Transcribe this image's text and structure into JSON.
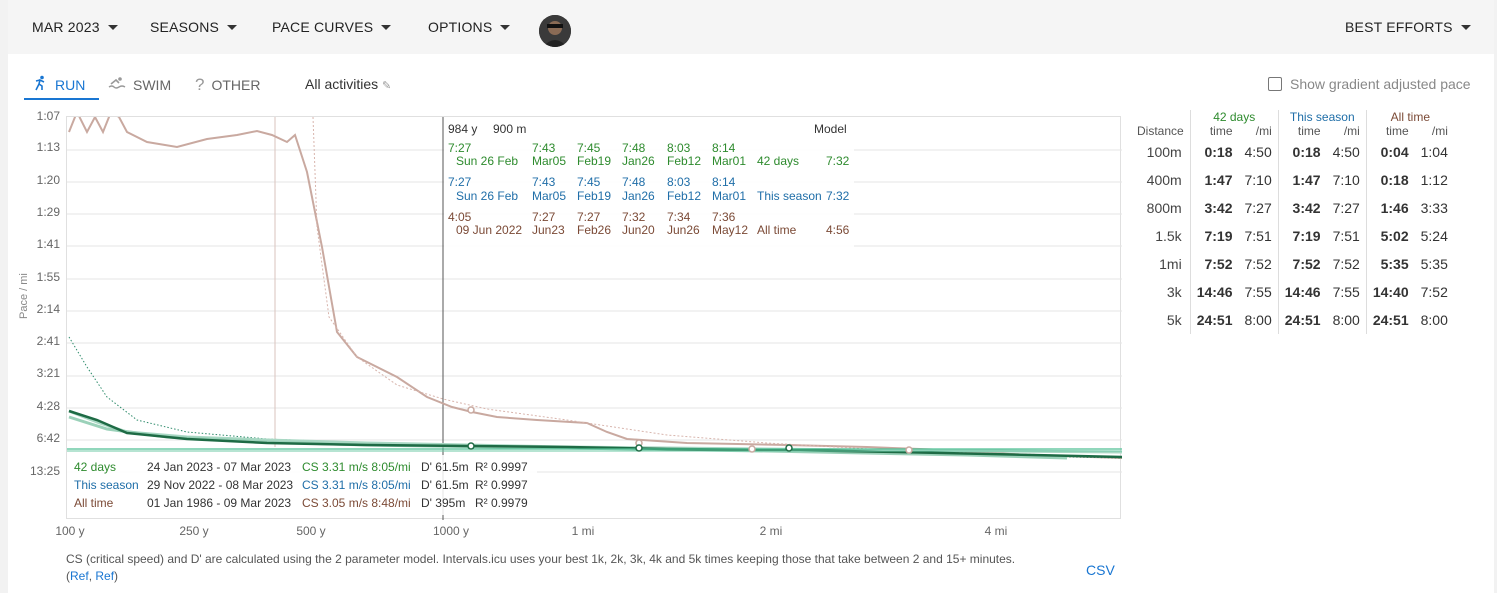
{
  "topbar": {
    "month": "MAR 2023",
    "seasons": "SEASONS",
    "pace_curves": "PACE CURVES",
    "options": "OPTIONS",
    "best_efforts": "BEST EFFORTS"
  },
  "tabs": [
    {
      "label": "RUN",
      "icon": "run-icon",
      "active": true
    },
    {
      "label": "SWIM",
      "icon": "swim-icon",
      "active": false
    },
    {
      "label": "OTHER",
      "icon": "question-icon",
      "active": false
    }
  ],
  "filter": {
    "label": "All activities",
    "icon": "pencil-icon"
  },
  "gap_checkbox": {
    "label": "Show gradient adjusted pace",
    "checked": false
  },
  "colors": {
    "accent": "#1976d2",
    "green": "#2e8b2e",
    "blue": "#1f6ea8",
    "brown": "#7b4a36"
  },
  "chart_data": {
    "type": "line",
    "ylabel": "Pace / mi",
    "y_ticks": [
      "1:07",
      "1:13",
      "1:20",
      "1:29",
      "1:41",
      "1:55",
      "2:14",
      "2:41",
      "3:21",
      "4:28",
      "6:42",
      "13:25"
    ],
    "x_ticks": [
      "100 y",
      "250 y",
      "500 y",
      "1000 y",
      "1 mi",
      "2 mi",
      "4 mi"
    ],
    "cursor": {
      "distance_y": "984 y",
      "distance_m": "900 m"
    },
    "tooltip_header": "Model",
    "tooltip_rows": [
      {
        "series": "42 days",
        "best": "7:27",
        "best_date": "Sun 26 Feb",
        "others": [
          [
            "7:43",
            "Mar05"
          ],
          [
            "7:45",
            "Feb19"
          ],
          [
            "7:48",
            "Jan26"
          ],
          [
            "8:03",
            "Feb12"
          ],
          [
            "8:14",
            "Mar01"
          ]
        ],
        "model": "7:32"
      },
      {
        "series": "This season",
        "best": "7:27",
        "best_date": "Sun 26 Feb",
        "others": [
          [
            "7:43",
            "Mar05"
          ],
          [
            "7:45",
            "Feb19"
          ],
          [
            "7:48",
            "Jan26"
          ],
          [
            "8:03",
            "Feb12"
          ],
          [
            "8:14",
            "Mar01"
          ]
        ],
        "model": "7:32"
      },
      {
        "series": "All time",
        "best": "4:05",
        "best_date": "09 Jun 2022",
        "others": [
          [
            "7:27",
            "Jun23"
          ],
          [
            "7:27",
            "Feb26"
          ],
          [
            "7:32",
            "Jun20"
          ],
          [
            "7:34",
            "Jun26"
          ],
          [
            "7:36",
            "May12"
          ]
        ],
        "model": "4:56"
      }
    ],
    "legend": [
      {
        "name": "42 days",
        "range": "24 Jan 2023 - 07 Mar 2023",
        "cs": "CS 3.31 m/s 8:05/mi",
        "dprime": "D' 61.5m",
        "r2": "R² 0.9997"
      },
      {
        "name": "This season",
        "range": "29 Nov 2022 - 08 Mar 2023",
        "cs": "CS 3.31 m/s 8:05/mi",
        "dprime": "D' 61.5m",
        "r2": "R² 0.9997"
      },
      {
        "name": "All time",
        "range": "01 Jan 1986 - 09 Mar 2023",
        "cs": "CS 3.05 m/s 8:48/mi",
        "dprime": "D' 395m",
        "r2": "R² 0.9979"
      }
    ]
  },
  "best_efforts": {
    "groups": [
      "42 days",
      "This season",
      "All time"
    ],
    "col_time": "time",
    "col_pace": "/mi",
    "dist_header": "Distance",
    "rows": [
      {
        "distance": "100m",
        "v": [
          "0:18",
          "4:50",
          "0:18",
          "4:50",
          "0:04",
          "1:04"
        ]
      },
      {
        "distance": "400m",
        "v": [
          "1:47",
          "7:10",
          "1:47",
          "7:10",
          "0:18",
          "1:12"
        ]
      },
      {
        "distance": "800m",
        "v": [
          "3:42",
          "7:27",
          "3:42",
          "7:27",
          "1:46",
          "3:33"
        ]
      },
      {
        "distance": "1.5k",
        "v": [
          "7:19",
          "7:51",
          "7:19",
          "7:51",
          "5:02",
          "5:24"
        ]
      },
      {
        "distance": "1mi",
        "v": [
          "7:52",
          "7:52",
          "7:52",
          "7:52",
          "5:35",
          "5:35"
        ]
      },
      {
        "distance": "3k",
        "v": [
          "14:46",
          "7:55",
          "14:46",
          "7:55",
          "14:40",
          "7:52"
        ]
      },
      {
        "distance": "5k",
        "v": [
          "24:51",
          "8:00",
          "24:51",
          "8:00",
          "24:51",
          "8:00"
        ]
      }
    ]
  },
  "footer": {
    "text": "CS (critical speed) and D' are calculated using the 2 parameter model. Intervals.icu uses your best 1k, 2k, 3k, 4k and 5k times keeping those that take between 2 and 15+ minutes. (",
    "ref1": "Ref",
    "sep": ", ",
    "ref2": "Ref",
    "close": ")",
    "csv": "CSV"
  }
}
